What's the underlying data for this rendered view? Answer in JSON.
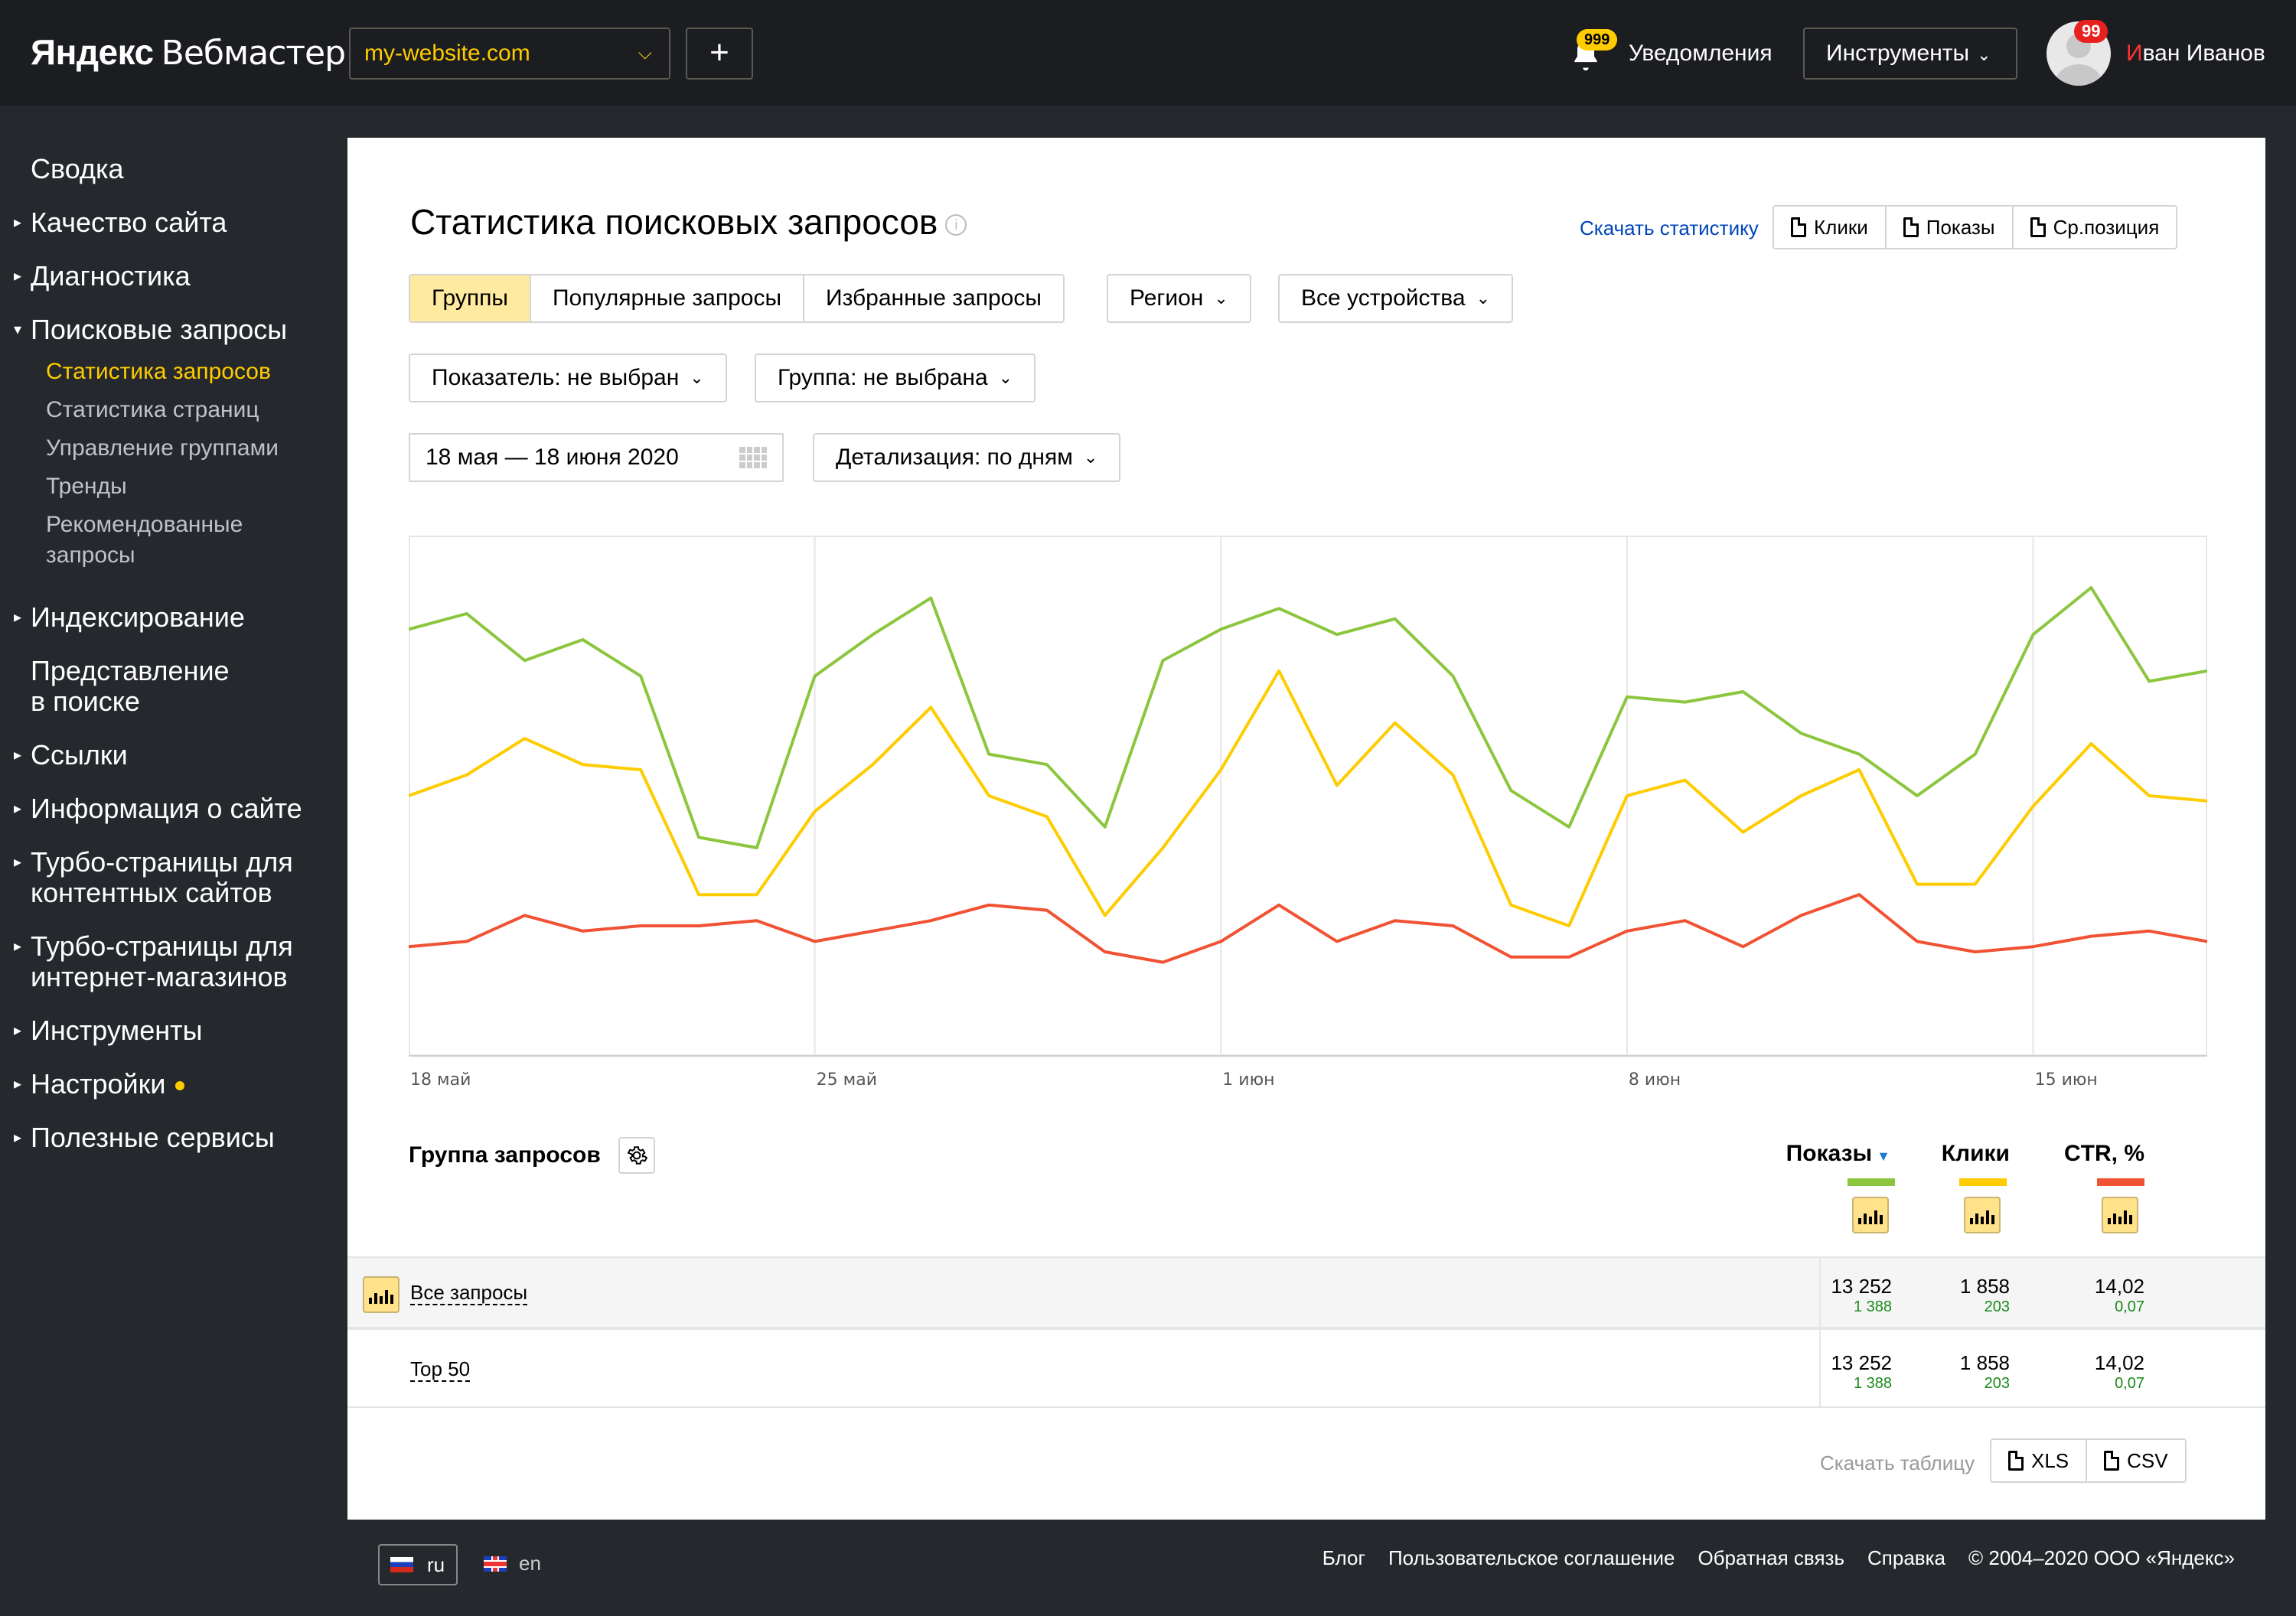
{
  "header": {
    "logo_brand": "Яндекс",
    "logo_product": "Вебмастер",
    "site": "my-website.com",
    "add_label": "+",
    "notifications_badge": "999",
    "notifications_label": "Уведомления",
    "tools_label": "Инструменты",
    "avatar_badge": "99",
    "user_first_letter": "И",
    "user_rest": "ван Иванов"
  },
  "sidebar": {
    "items": [
      {
        "label": "Сводка"
      },
      {
        "label": "Качество сайта"
      },
      {
        "label": "Диагностика"
      },
      {
        "label": "Поисковые запросы"
      },
      {
        "label": "Индексирование"
      },
      {
        "label": "Представление"
      },
      {
        "label": "в поиске"
      },
      {
        "label": "Ссылки"
      },
      {
        "label": "Информация о сайте"
      },
      {
        "label": "Турбо-страницы для"
      },
      {
        "label": "контентных сайтов"
      },
      {
        "label": "Турбо-страницы для"
      },
      {
        "label": "интернет-магазинов"
      },
      {
        "label": "Инструменты"
      },
      {
        "label": "Настройки"
      },
      {
        "label": "Полезные сервисы"
      }
    ],
    "sub_items": [
      {
        "label": "Статистика запросов"
      },
      {
        "label": "Статистика страниц"
      },
      {
        "label": "Управление группами"
      },
      {
        "label": "Тренды"
      },
      {
        "label": "Рекомендованные"
      },
      {
        "label": "запросы"
      }
    ]
  },
  "main": {
    "title": "Статистика поисковых запросов",
    "info_icon": "i",
    "download_link": "Скачать статистику",
    "export_buttons": [
      "Клики",
      "Показы",
      "Ср.позиция"
    ],
    "tabs": [
      "Группы",
      "Популярные запросы",
      "Избранные запросы"
    ],
    "region": "Регион",
    "devices": "Все устройства",
    "indicator": "Показатель: не выбран",
    "group": "Группа: не выбрана",
    "date_range": "18 мая — 18 июня 2020",
    "detail": "Детализация: по дням"
  },
  "chart_data": {
    "type": "line",
    "x_ticks": [
      "18 май",
      "25 май",
      "1 июн",
      "8 июн",
      "15 июн"
    ],
    "ylim": [
      0,
      100
    ],
    "series": [
      {
        "color": "#8cc63f",
        "values": [
          82,
          85,
          76,
          80,
          73,
          42,
          40,
          73,
          81,
          88,
          58,
          56,
          44,
          76,
          82,
          86,
          81,
          84,
          73,
          51,
          44,
          69,
          68,
          70,
          62,
          58,
          50,
          58,
          81,
          90,
          72,
          74
        ]
      },
      {
        "color": "#ffcc00",
        "values": [
          50,
          54,
          61,
          56,
          55,
          31,
          31,
          47,
          56,
          67,
          50,
          46,
          27,
          40,
          55,
          74,
          52,
          64,
          54,
          29,
          25,
          50,
          53,
          43,
          50,
          55,
          33,
          33,
          48,
          60,
          50,
          49
        ]
      },
      {
        "color": "#f05233",
        "values": [
          21,
          22,
          27,
          24,
          25,
          25,
          26,
          22,
          24,
          26,
          29,
          28,
          20,
          18,
          22,
          29,
          22,
          26,
          25,
          19,
          19,
          24,
          26,
          21,
          27,
          31,
          22,
          20,
          21,
          23,
          24,
          22
        ]
      }
    ]
  },
  "table": {
    "title": "Группа запросов",
    "columns": [
      {
        "label": "Показы",
        "color": "#8cc63f"
      },
      {
        "label": "Клики",
        "color": "#ffcc00"
      },
      {
        "label": "CTR, %",
        "color": "#f05233"
      }
    ],
    "rows": [
      {
        "label": "Все запросы",
        "values": [
          "13 252",
          "1 858",
          "14,02"
        ],
        "deltas": [
          "1 388",
          "203",
          "0,07"
        ]
      },
      {
        "label": "Top 50",
        "values": [
          "13 252",
          "1 858",
          "14,02"
        ],
        "deltas": [
          "1 388",
          "203",
          "0,07"
        ]
      }
    ],
    "download_label": "Скачать таблицу",
    "formats": [
      "XLS",
      "CSV"
    ]
  },
  "footer": {
    "lang_current": "ru",
    "lang_other": "en",
    "links": [
      "Блог",
      "Пользовательское соглашение",
      "Обратная связь",
      "Справка",
      "© 2004–2020 ООО «Яндекс»"
    ]
  }
}
